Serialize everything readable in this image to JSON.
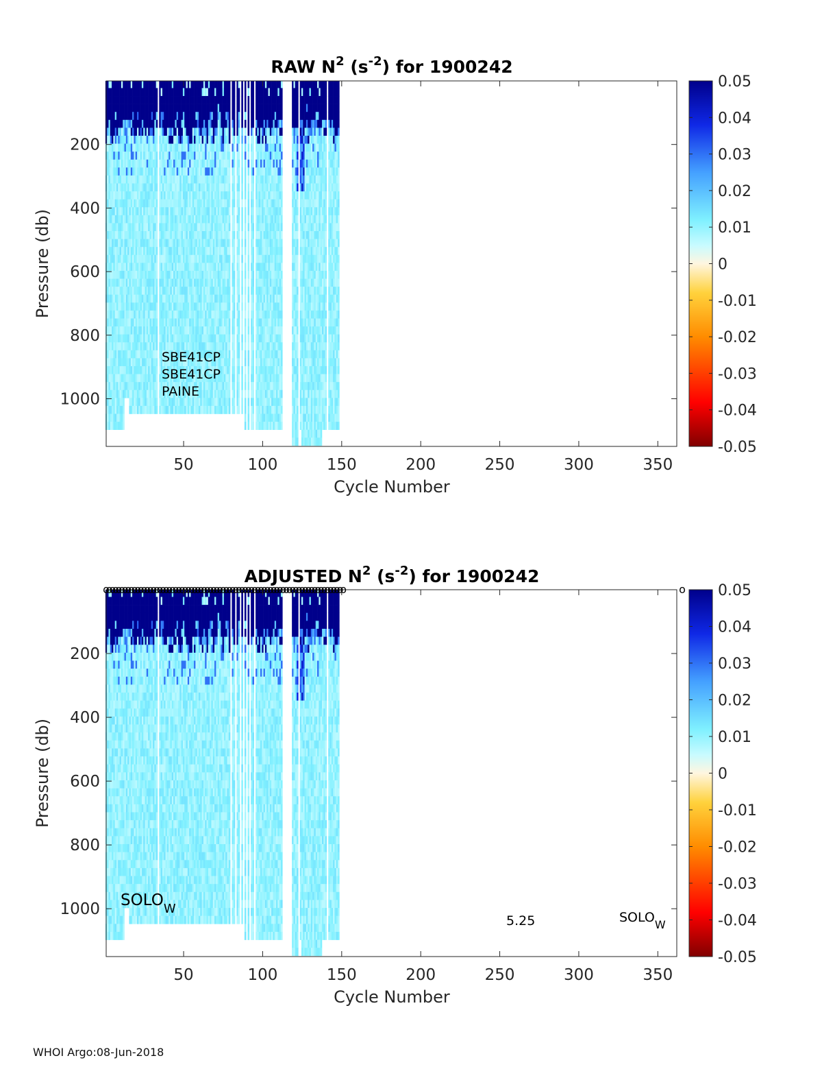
{
  "chart_data": [
    {
      "type": "heatmap",
      "title": "RAW N",
      "title_sup": "2",
      "title_units_open": " (s",
      "title_units_sup": "-2",
      "title_units_close": ") for 1900242",
      "xlabel": "Cycle Number",
      "ylabel": "Pressure (db)",
      "xlim": [
        1,
        362
      ],
      "ylim": [
        0,
        1150
      ],
      "y_reversed": true,
      "x_ticks": [
        50,
        100,
        150,
        200,
        250,
        300,
        350
      ],
      "y_ticks": [
        200,
        400,
        600,
        800,
        1000
      ],
      "colorbar": {
        "min": -0.05,
        "max": 0.05,
        "ticks": [
          "0.05",
          "0.04",
          "0.03",
          "0.02",
          "0.01",
          "0",
          "-0.01",
          "-0.02",
          "-0.03",
          "-0.04",
          "-0.05"
        ],
        "colormap": "jet"
      },
      "data_columns": {
        "cycle_ranges": [
          [
            1,
            112
          ],
          [
            119,
            148
          ]
        ],
        "missing_cycles": [
          34,
          80,
          83,
          86,
          88,
          90,
          92,
          95,
          123,
          141
        ],
        "max_pressure_by_cycle_range": [
          [
            [
              1,
              12
            ],
            1100
          ],
          [
            [
              13,
              15
            ],
            1000
          ],
          [
            [
              16,
              55
            ],
            1050
          ],
          [
            [
              56,
              87
            ],
            1050
          ],
          [
            [
              88,
              112
            ],
            1100
          ],
          [
            [
              119,
              122
            ],
            1150
          ],
          [
            [
              123,
              124
            ],
            1100
          ],
          [
            [
              125,
              137
            ],
            1150
          ],
          [
            [
              138,
              148
            ],
            1100
          ]
        ],
        "surface_layer": {
          "value": 0.05,
          "bottom_pressure_range": [
            100,
            220
          ]
        },
        "interior_value_range": [
          0.006,
          0.014
        ]
      },
      "annotations": [
        "SBE41CP",
        "SBE41CP",
        "PAINE"
      ]
    },
    {
      "type": "heatmap",
      "title": "ADJUSTED N",
      "title_sup": "2",
      "title_units_open": " (s",
      "title_units_sup": "-2",
      "title_units_close": ") for 1900242",
      "xlabel": "Cycle Number",
      "ylabel": "Pressure (db)",
      "xlim": [
        1,
        362
      ],
      "ylim": [
        0,
        1150
      ],
      "y_reversed": true,
      "x_ticks": [
        50,
        100,
        150,
        200,
        250,
        300,
        350
      ],
      "y_ticks": [
        200,
        400,
        600,
        800,
        1000
      ],
      "colorbar": {
        "min": -0.05,
        "max": 0.05,
        "ticks": [
          "0.05",
          "0.04",
          "0.03",
          "0.02",
          "0.01",
          "0",
          "-0.01",
          "-0.02",
          "-0.03",
          "-0.04",
          "-0.05"
        ],
        "colormap": "jet"
      },
      "qc_marker": "o",
      "qc_marker_cycles_range": [
        1,
        152
      ],
      "qc_marker_extra_cycle": 362,
      "annotations": {
        "left_main": "SOLO",
        "left_sub": "W",
        "mid": "5.25",
        "right_main": "SOLO",
        "right_sub": "W"
      }
    }
  ],
  "footer": "WHOI Argo:08-Jun-2018"
}
